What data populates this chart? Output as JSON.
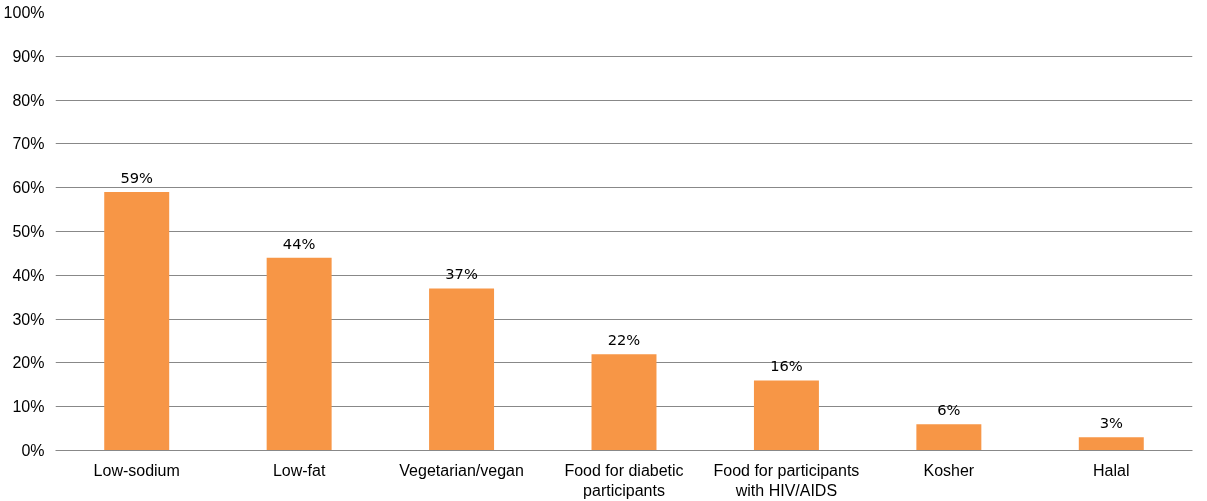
{
  "chart_data": {
    "type": "bar",
    "categories": [
      "Low-sodium",
      "Low-fat",
      "Vegetarian/vegan",
      "Food for diabetic participants",
      "Food for participants with HIV/AIDS",
      "Kosher",
      "Halal"
    ],
    "values": [
      59,
      44,
      37,
      22,
      16,
      6,
      3
    ],
    "color": "#f79646",
    "ylim": [
      0,
      100
    ],
    "yticks": [
      {
        "value": 0,
        "label": "0%"
      },
      {
        "value": 10,
        "label": "10%"
      },
      {
        "value": 20,
        "label": "20%"
      },
      {
        "value": 30,
        "label": "30%"
      },
      {
        "value": 40,
        "label": "40%"
      },
      {
        "value": 50,
        "label": "50%"
      },
      {
        "value": 60,
        "label": "60%"
      },
      {
        "value": 70,
        "label": "70%"
      },
      {
        "value": 80,
        "label": "80%"
      },
      {
        "value": 90,
        "label": "90%"
      },
      {
        "value": 100,
        "label": "100%"
      }
    ],
    "value_labels": [
      "59%",
      "44%",
      "37%",
      "22%",
      "16%",
      "6%",
      "3%"
    ],
    "grid": "y"
  }
}
